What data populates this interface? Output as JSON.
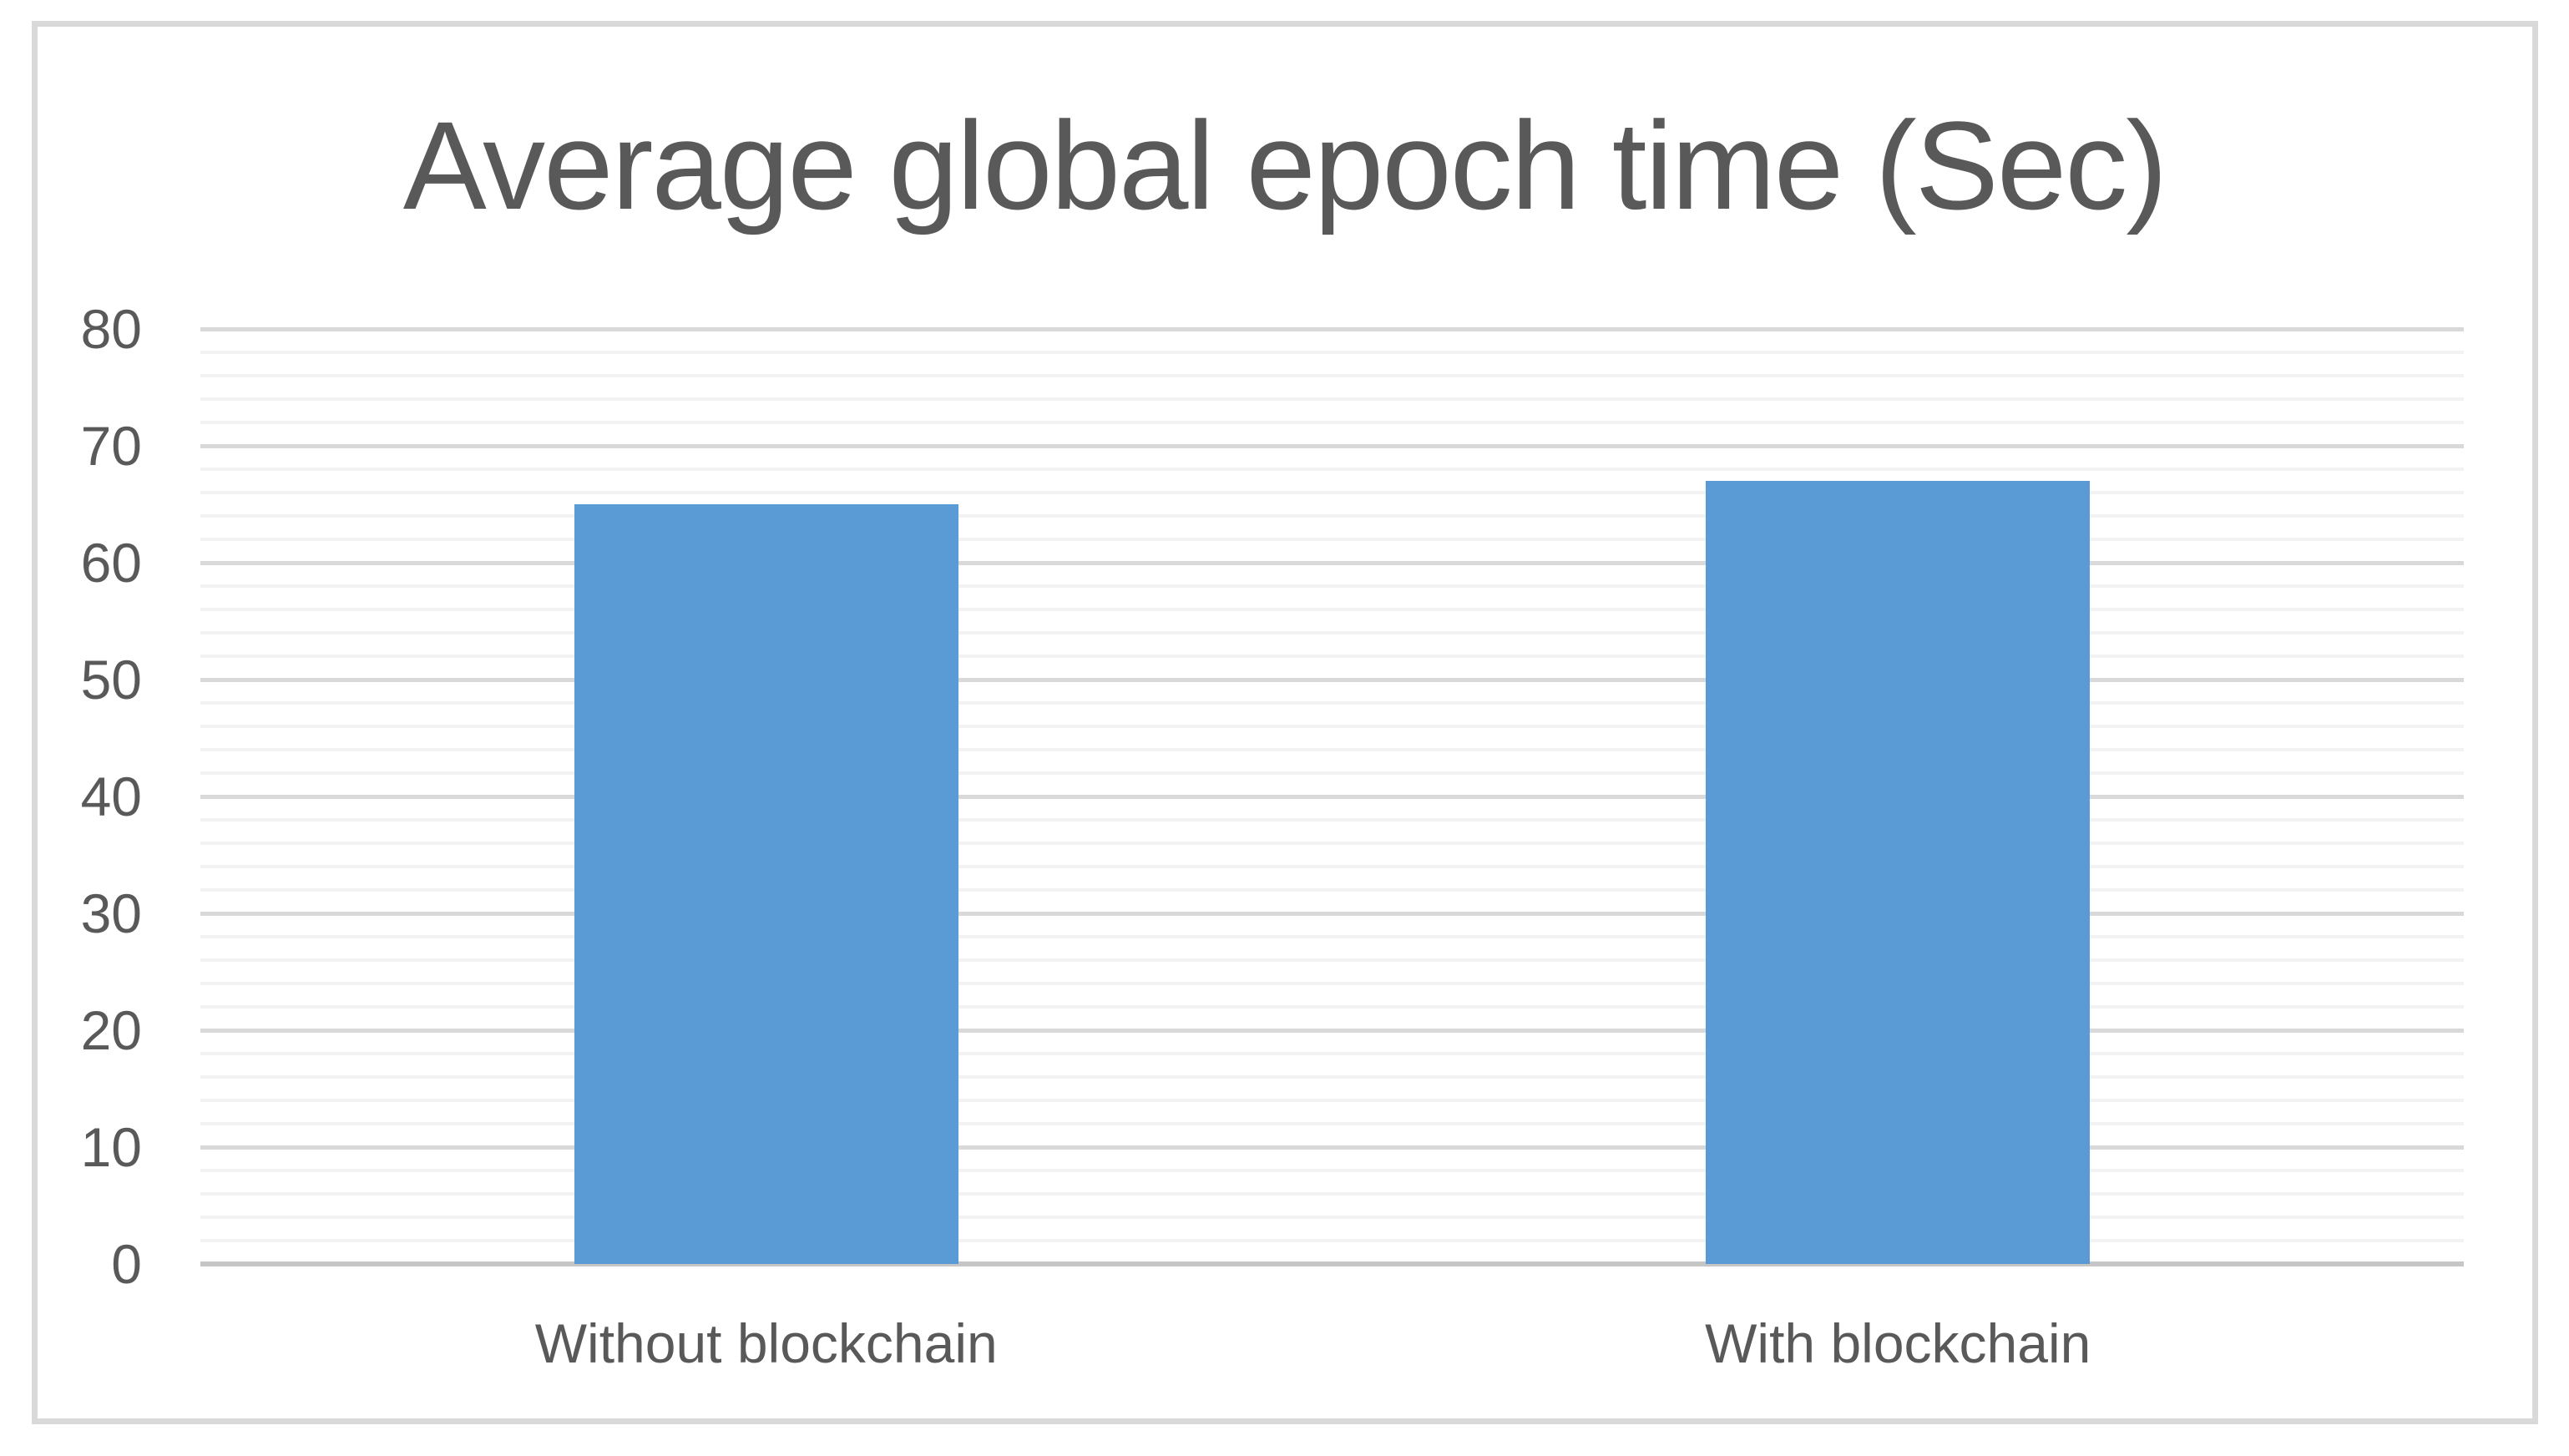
{
  "chart_data": {
    "type": "bar",
    "title": "Average global epoch time (Sec)",
    "categories": [
      "Without blockchain",
      "With blockchain"
    ],
    "values": [
      65,
      67
    ],
    "xlabel": "",
    "ylabel": "",
    "ylim": [
      0,
      80
    ],
    "yticks": [
      0,
      10,
      20,
      30,
      40,
      50,
      60,
      70,
      80
    ],
    "y_minor_step": 2,
    "legend_position": "none",
    "grid": {
      "horizontal_major": true,
      "horizontal_minor": true,
      "vertical": false
    },
    "colors": {
      "bar_fill": "#5b9bd5",
      "title_text": "#595959",
      "tick_text": "#595959",
      "major_gridline": "#d9d9d9",
      "minor_gridline": "#f2f2f2",
      "axis_line": "#c6c6c6",
      "frame_border": "#d9d9d9",
      "background": "#ffffff"
    }
  }
}
